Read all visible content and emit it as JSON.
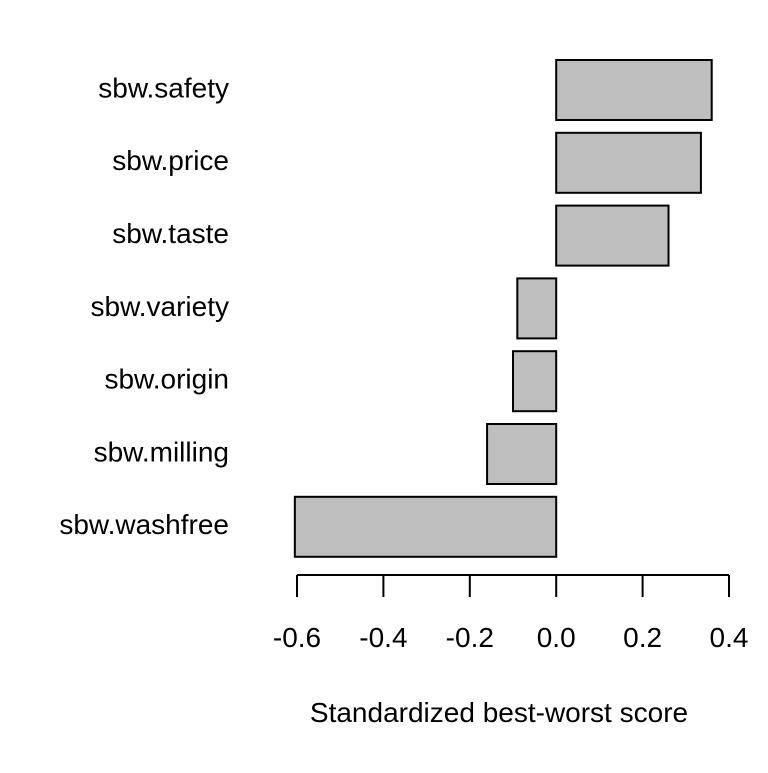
{
  "chart_data": {
    "type": "bar",
    "orientation": "horizontal",
    "categories": [
      "sbw.safety",
      "sbw.price",
      "sbw.taste",
      "sbw.variety",
      "sbw.origin",
      "sbw.milling",
      "sbw.washfree"
    ],
    "values": [
      0.36,
      0.335,
      0.26,
      -0.09,
      -0.1,
      -0.16,
      -0.605
    ],
    "xlabel": "Standardized best-worst score",
    "ylabel": "",
    "xlim": [
      -0.6,
      0.4
    ],
    "xticks": [
      -0.6,
      -0.4,
      -0.2,
      0.0,
      0.2,
      0.4
    ],
    "xtick_labels": [
      "-0.6",
      "-0.4",
      "-0.2",
      "0.0",
      "0.2",
      "0.4"
    ],
    "grid": false,
    "bar_color": "#bebebe",
    "bar_edge_color": "#000000"
  }
}
